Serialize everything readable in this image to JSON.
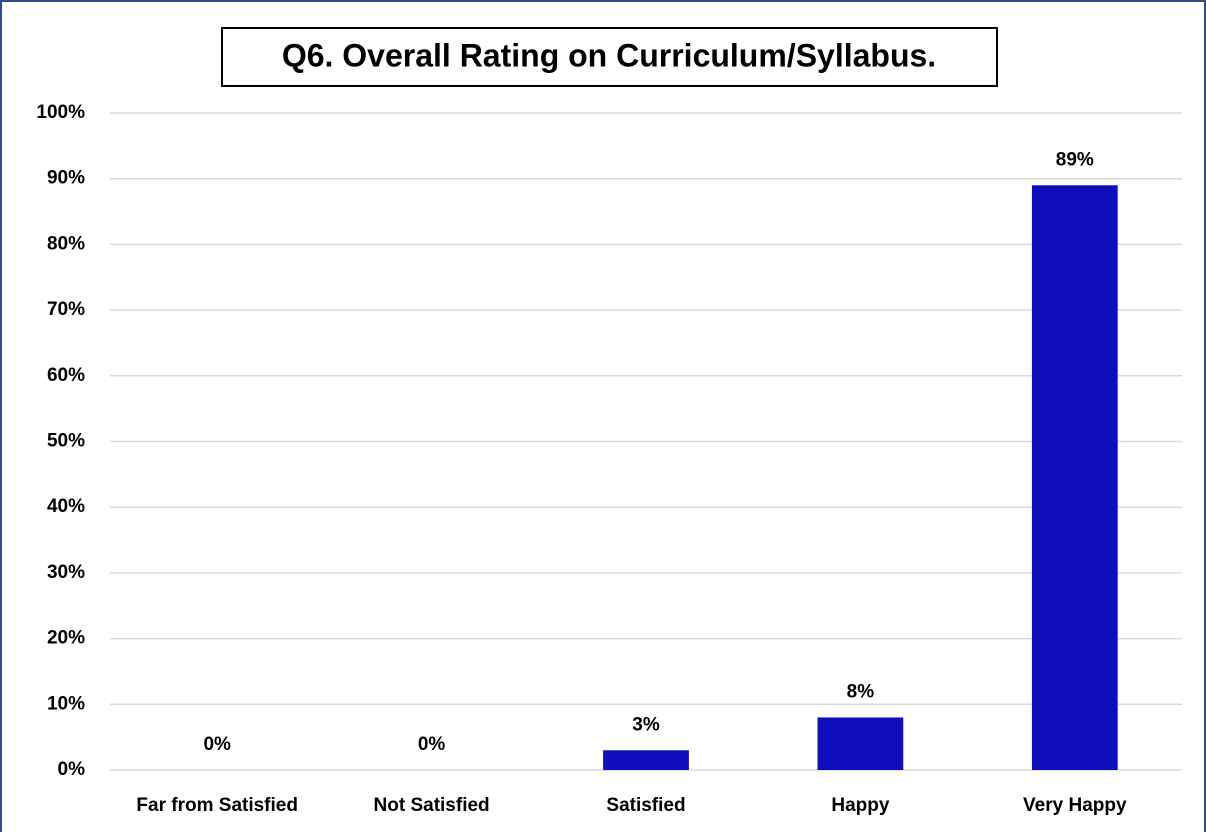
{
  "chart_data": {
    "type": "bar",
    "title": "Q6. Overall Rating on Curriculum/Syllabus.",
    "categories": [
      "Far from Satisfied",
      "Not Satisfied",
      "Satisfied",
      "Happy",
      "Very Happy"
    ],
    "values": [
      0,
      0,
      3,
      8,
      89
    ],
    "value_labels": [
      "0%",
      "0%",
      "3%",
      "8%",
      "89%"
    ],
    "color": "#0e0ebb",
    "ylim": [
      0,
      100
    ],
    "yticks": [
      {
        "value": 0,
        "label": "0%"
      },
      {
        "value": 10,
        "label": "10%"
      },
      {
        "value": 20,
        "label": "20%"
      },
      {
        "value": 30,
        "label": "30%"
      },
      {
        "value": 40,
        "label": "40%"
      },
      {
        "value": 50,
        "label": "50%"
      },
      {
        "value": 60,
        "label": "60%"
      },
      {
        "value": 70,
        "label": "70%"
      },
      {
        "value": 80,
        "label": "80%"
      },
      {
        "value": 90,
        "label": "90%"
      },
      {
        "value": 100,
        "label": "100%"
      }
    ],
    "grid": true
  }
}
